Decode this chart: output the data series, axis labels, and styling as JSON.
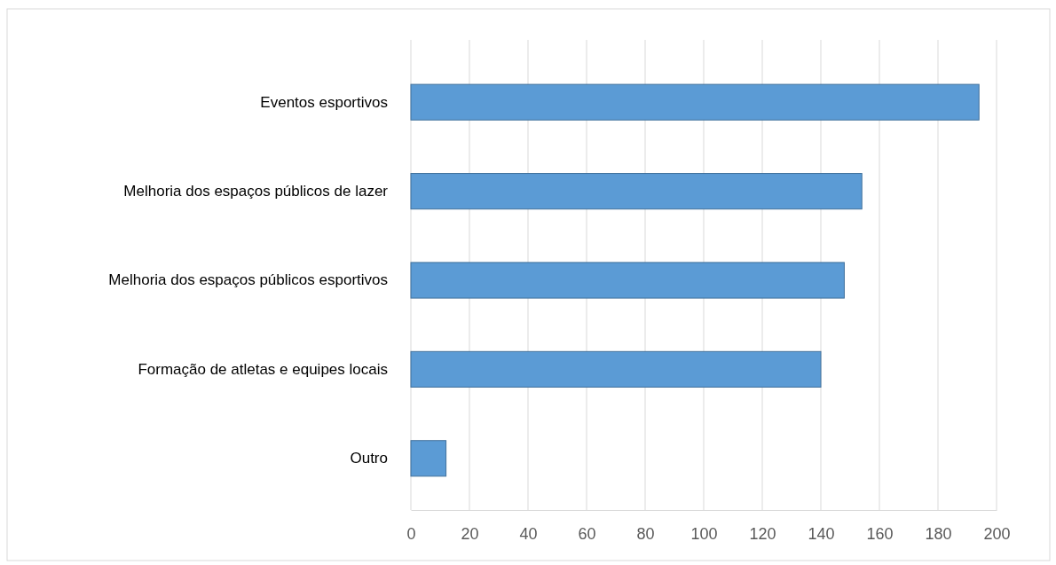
{
  "chart_data": {
    "type": "bar",
    "orientation": "horizontal",
    "categories": [
      "Eventos esportivos",
      "Melhoria dos espaços públicos de lazer",
      "Melhoria dos espaços públicos esportivos",
      "Formação de atletas e equipes locais",
      "Outro"
    ],
    "values": [
      194,
      154,
      148,
      140,
      12
    ],
    "color": "#5b9bd5",
    "xlim": [
      0,
      200
    ],
    "xticks": [
      0,
      20,
      40,
      60,
      80,
      100,
      120,
      140,
      160,
      180,
      200
    ],
    "grid": "x"
  }
}
